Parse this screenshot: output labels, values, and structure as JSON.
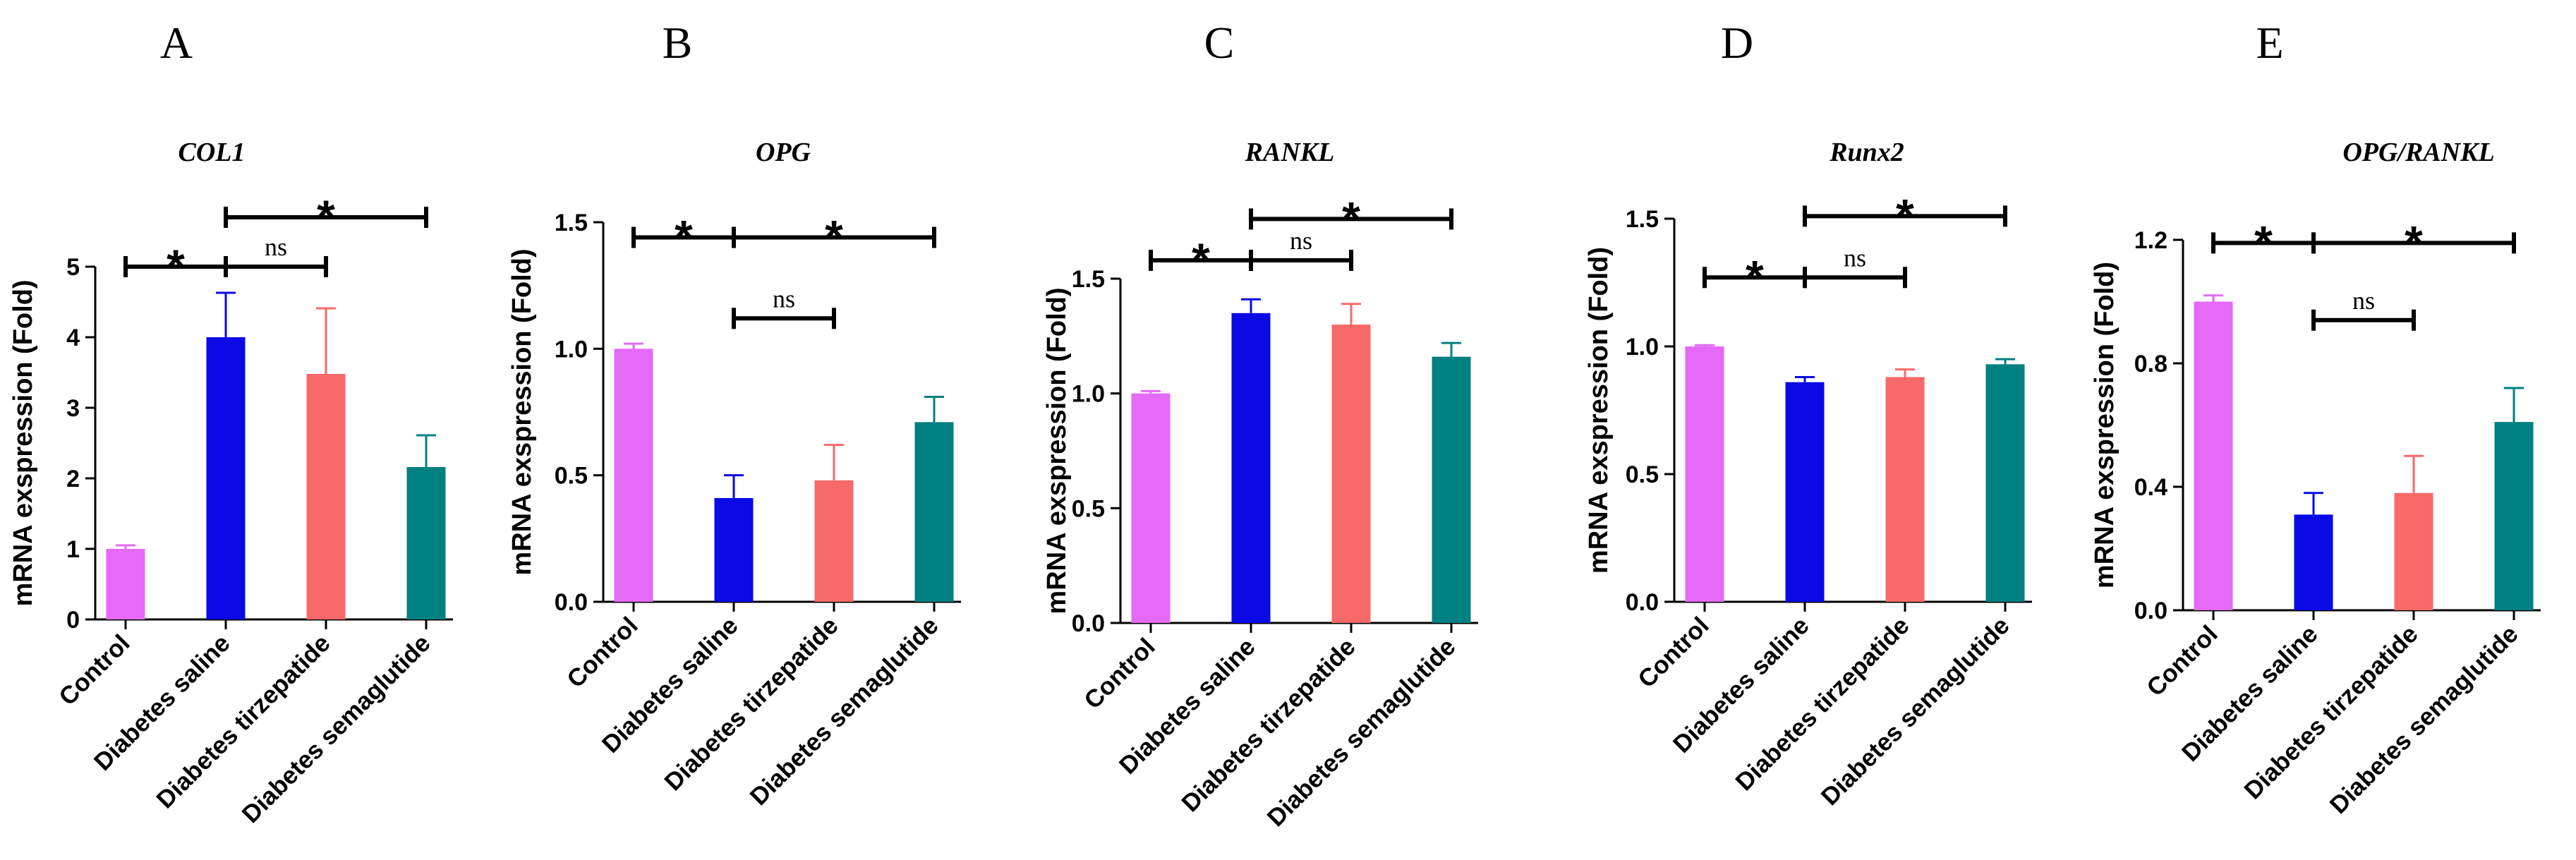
{
  "categories": [
    "Control",
    "Diabetes saline",
    "Diabetes tirzepatide",
    "Diabetes semaglutide"
  ],
  "colors": [
    "#E46AF7",
    "#0A0AE6",
    "#F86A6A",
    "#008080"
  ],
  "chart_data": [
    {
      "type": "bar",
      "panel": "A",
      "title": "COL1",
      "ylabel": "mRNA exspression (Fold)",
      "categories": [
        "Control",
        "Diabetes saline",
        "Diabetes tirzepatide",
        "Diabetes semaglutide"
      ],
      "values": [
        1.0,
        4.0,
        3.48,
        2.16
      ],
      "errors": [
        0.05,
        0.63,
        0.93,
        0.45
      ],
      "ylim": [
        0,
        5
      ],
      "yticks": [
        "0",
        "1",
        "2",
        "3",
        "4",
        "5"
      ],
      "comparisons": [
        {
          "from": 0,
          "to": 1,
          "label": "*",
          "y": 5.0
        },
        {
          "from": 1,
          "to": 2,
          "label": "ns",
          "y": 5.0
        },
        {
          "from": 1,
          "to": 3,
          "label": "*",
          "y": 5.7
        }
      ]
    },
    {
      "type": "bar",
      "panel": "B",
      "title": "OPG",
      "ylabel": "mRNA exspression (Fold)",
      "categories": [
        "Control",
        "Diabetes saline",
        "Diabetes tirzepatide",
        "Diabetes semaglutide"
      ],
      "values": [
        1.0,
        0.41,
        0.48,
        0.71
      ],
      "errors": [
        0.02,
        0.09,
        0.14,
        0.1
      ],
      "ylim": [
        0,
        1.5
      ],
      "yticks": [
        "0.0",
        "0.5",
        "1.0",
        "1.5"
      ],
      "comparisons": [
        {
          "from": 0,
          "to": 1,
          "label": "*",
          "y": 1.44
        },
        {
          "from": 1,
          "to": 3,
          "label": "*",
          "y": 1.44
        },
        {
          "from": 1,
          "to": 2,
          "label": "ns",
          "y": 1.12
        }
      ]
    },
    {
      "type": "bar",
      "panel": "C",
      "title": "RANKL",
      "ylabel": "mRNA exspression (Fold)",
      "categories": [
        "Control",
        "Diabetes saline",
        "Diabetes tirzepatide",
        "Diabetes semaglutide"
      ],
      "values": [
        1.0,
        1.35,
        1.3,
        1.16
      ],
      "errors": [
        0.01,
        0.06,
        0.09,
        0.06
      ],
      "ylim": [
        0,
        1.5
      ],
      "yticks": [
        "0.0",
        "0.5",
        "1.0",
        "1.5"
      ],
      "comparisons": [
        {
          "from": 0,
          "to": 1,
          "label": "*",
          "y": 1.58
        },
        {
          "from": 1,
          "to": 2,
          "label": "ns",
          "y": 1.58
        },
        {
          "from": 1,
          "to": 3,
          "label": "*",
          "y": 1.76
        }
      ]
    },
    {
      "type": "bar",
      "panel": "D",
      "title": "Runx2",
      "ylabel": "mRNA exspression (Fold)",
      "categories": [
        "Control",
        "Diabetes saline",
        "Diabetes tirzepatide",
        "Diabetes semaglutide"
      ],
      "values": [
        1.0,
        0.86,
        0.88,
        0.93
      ],
      "errors": [
        0.005,
        0.02,
        0.03,
        0.02
      ],
      "ylim": [
        0,
        1.5
      ],
      "yticks": [
        "0.0",
        "0.5",
        "1.0",
        "1.5"
      ],
      "comparisons": [
        {
          "from": 0,
          "to": 1,
          "label": "*",
          "y": 1.27
        },
        {
          "from": 1,
          "to": 2,
          "label": "ns",
          "y": 1.27
        },
        {
          "from": 1,
          "to": 3,
          "label": "*",
          "y": 1.51
        }
      ]
    },
    {
      "type": "bar",
      "panel": "E",
      "title": "OPG/RANKL",
      "ylabel": "mRNA exspression (Fold)",
      "categories": [
        "Control",
        "Diabetes saline",
        "Diabetes tirzepatide",
        "Diabetes semaglutide"
      ],
      "values": [
        1.0,
        0.31,
        0.38,
        0.61
      ],
      "errors": [
        0.02,
        0.07,
        0.12,
        0.11
      ],
      "ylim": [
        0,
        1.2
      ],
      "yticks": [
        "0.0",
        "0.4",
        "0.8",
        "1.2"
      ],
      "comparisons": [
        {
          "from": 0,
          "to": 1,
          "label": "*",
          "y": 1.19
        },
        {
          "from": 1,
          "to": 3,
          "label": "*",
          "y": 1.19
        },
        {
          "from": 1,
          "to": 2,
          "label": "ns",
          "y": 0.94
        }
      ]
    }
  ]
}
